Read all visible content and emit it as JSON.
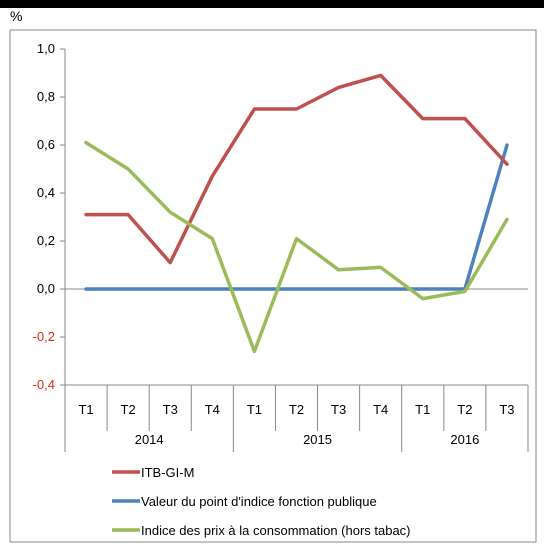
{
  "chart_data": {
    "type": "line",
    "title": "",
    "ylabel": "%",
    "xlabel": "",
    "ylim": [
      -0.4,
      1.0
    ],
    "yticks": [
      "1,0",
      "0,8",
      "0,6",
      "0,4",
      "0,2",
      "0,0",
      "-0,2",
      "-0,4"
    ],
    "yticks_values": [
      1.0,
      0.8,
      0.6,
      0.4,
      0.2,
      0.0,
      -0.2,
      -0.4
    ],
    "categories": [
      "T1",
      "T2",
      "T3",
      "T4",
      "T1",
      "T2",
      "T3",
      "T4",
      "T1",
      "T2",
      "T3"
    ],
    "groups": [
      {
        "label": "2014",
        "count": 4
      },
      {
        "label": "2015",
        "count": 4
      },
      {
        "label": "2016",
        "count": 3
      }
    ],
    "series": [
      {
        "name": "ITB-GI-M",
        "color": "#c0504d",
        "values": [
          0.31,
          0.31,
          0.11,
          0.47,
          0.75,
          0.75,
          0.84,
          0.89,
          0.71,
          0.71,
          0.52
        ]
      },
      {
        "name": "Valeur du point d'indice fonction publique",
        "color": "#4f81bd",
        "values": [
          0.0,
          0.0,
          0.0,
          0.0,
          0.0,
          0.0,
          0.0,
          0.0,
          0.0,
          0.0,
          0.6
        ]
      },
      {
        "name": "Indice des prix à la consommation (hors tabac)",
        "color": "#9bbb59",
        "values": [
          0.61,
          0.5,
          0.32,
          0.21,
          -0.26,
          0.21,
          0.08,
          0.09,
          -0.04,
          -0.01,
          0.29
        ]
      }
    ],
    "grid": false,
    "legend_position": "bottom",
    "negative_tick_color": "#e0281e"
  }
}
